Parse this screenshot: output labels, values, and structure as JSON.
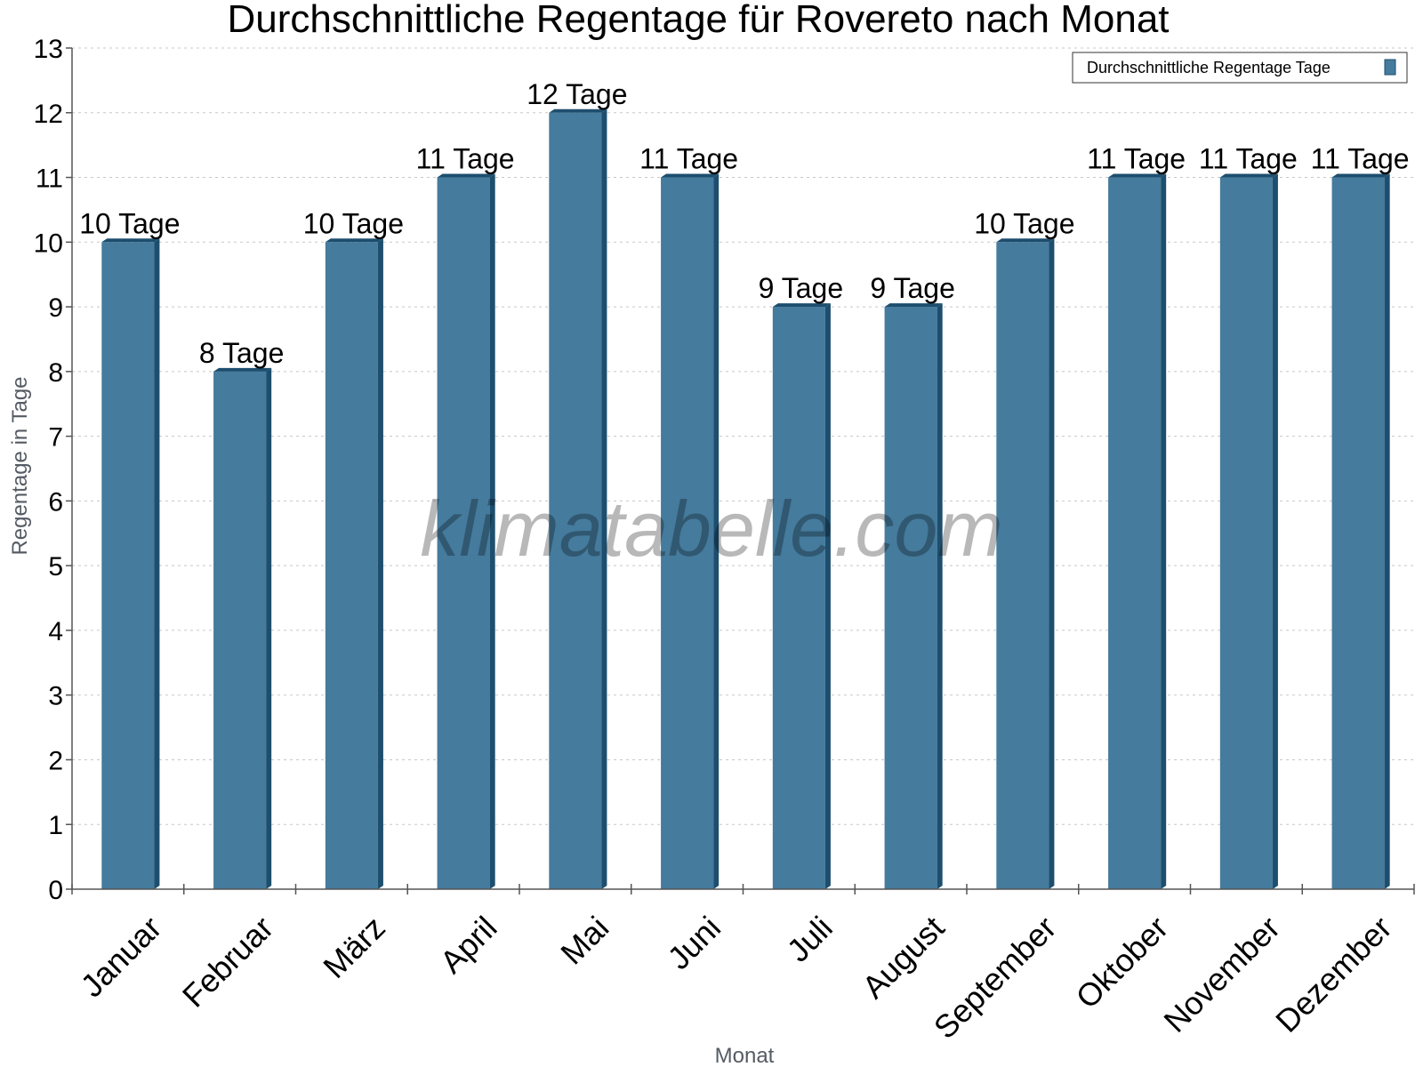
{
  "chart_data": {
    "type": "bar",
    "title": "Durchschnittliche Regentage für Rovereto nach Monat",
    "xlabel": "Monat",
    "ylabel": "Regentage in Tage",
    "categories": [
      "Januar",
      "Februar",
      "März",
      "April",
      "Mai",
      "Juni",
      "Juli",
      "August",
      "September",
      "Oktober",
      "November",
      "Dezember"
    ],
    "series": [
      {
        "name": "Durchschnittliche Regentage Tage",
        "values": [
          10,
          8,
          10,
          11,
          12,
          11,
          9,
          9,
          10,
          11,
          11,
          11
        ],
        "labels": [
          "10 Tage",
          "8 Tage",
          "10 Tage",
          "11 Tage",
          "12 Tage",
          "11 Tage",
          "9 Tage",
          "9 Tage",
          "10 Tage",
          "11 Tage",
          "11 Tage",
          "11 Tage"
        ],
        "color": "#457b9d",
        "side_color": "#1d4e6e"
      }
    ],
    "ylim": [
      0,
      13
    ],
    "yticks": [
      "0",
      "1",
      "2",
      "3",
      "4",
      "5",
      "6",
      "7",
      "8",
      "9",
      "10",
      "11",
      "12",
      "13"
    ],
    "grid": true,
    "legend_position": "top-right",
    "watermark": "klimatabelle.com"
  }
}
